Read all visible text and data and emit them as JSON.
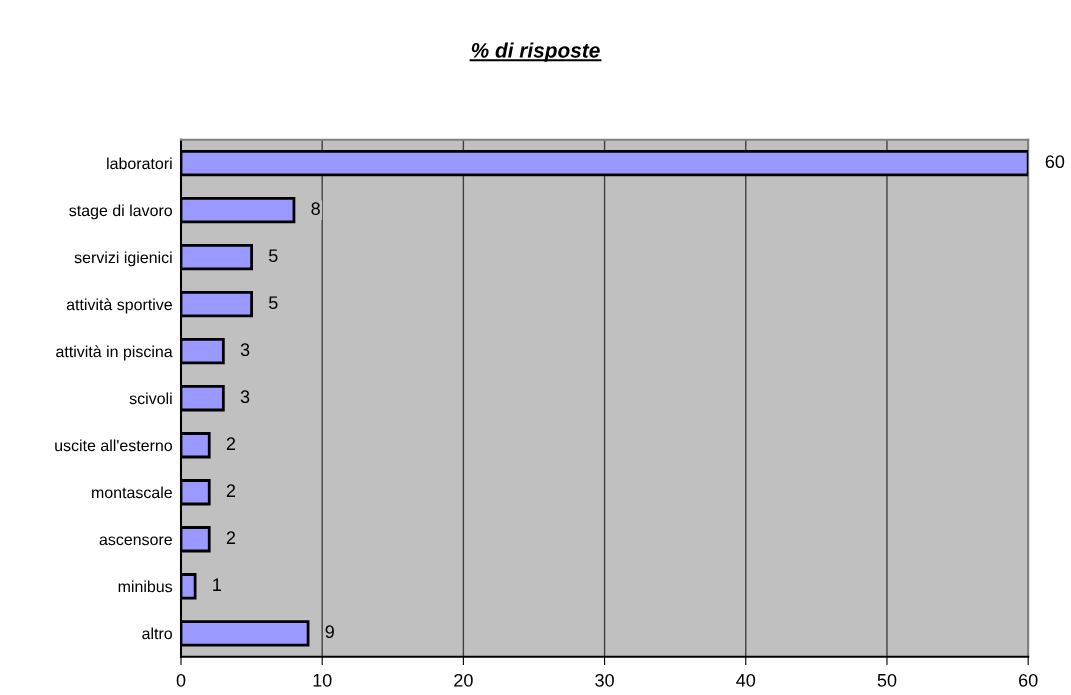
{
  "chart_data": {
    "type": "bar",
    "orientation": "horizontal",
    "title": "% di risposte",
    "categories": [
      "laboratori",
      "stage di lavoro",
      "servizi igienici",
      "attività sportive",
      "attività in piscina",
      "scivoli",
      "uscite all'esterno",
      "montascale",
      "ascensore",
      "minibus",
      "altro"
    ],
    "values": [
      60,
      8,
      5,
      5,
      3,
      3,
      2,
      2,
      2,
      1,
      9
    ],
    "color": "#9999ff",
    "xlim": [
      0,
      60
    ],
    "xticks": [
      0,
      10,
      20,
      30,
      40,
      50,
      60
    ],
    "grid": "x",
    "data_labels": true
  }
}
